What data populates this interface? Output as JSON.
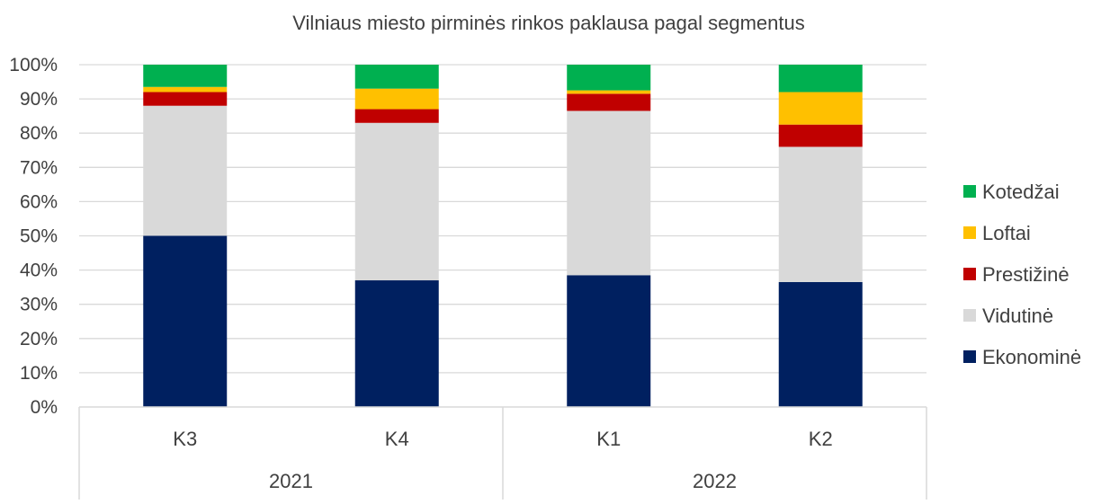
{
  "chart_data": {
    "type": "bar",
    "stacked": true,
    "percent_stacked": true,
    "title": "Vilniaus miesto pirminės rinkos paklausa pagal segmentus",
    "xlabel": "",
    "ylabel": "",
    "categories": [
      "K3",
      "K4",
      "K1",
      "K2"
    ],
    "category_groups": [
      {
        "label": "2021",
        "categories": [
          "K3",
          "K4"
        ]
      },
      {
        "label": "2022",
        "categories": [
          "K1",
          "K2"
        ]
      }
    ],
    "series": [
      {
        "name": "Ekonominė",
        "color": "#002060",
        "values": [
          50,
          37,
          38.5,
          36.5
        ]
      },
      {
        "name": "Vidutinė",
        "color": "#D9D9D9",
        "values": [
          38,
          46,
          48,
          39.5
        ]
      },
      {
        "name": "Prestižinė",
        "color": "#C00000",
        "values": [
          4,
          4,
          5,
          6.5
        ]
      },
      {
        "name": "Loftai",
        "color": "#FFC000",
        "values": [
          1.5,
          6,
          1,
          9.5
        ]
      },
      {
        "name": "Kotedžai",
        "color": "#00B050",
        "values": [
          6.5,
          7,
          7.5,
          8
        ]
      }
    ],
    "yticks": [
      "0%",
      "10%",
      "20%",
      "30%",
      "40%",
      "50%",
      "60%",
      "70%",
      "80%",
      "90%",
      "100%"
    ],
    "ylim": [
      0,
      100
    ],
    "grid": true,
    "legend_position": "right"
  }
}
